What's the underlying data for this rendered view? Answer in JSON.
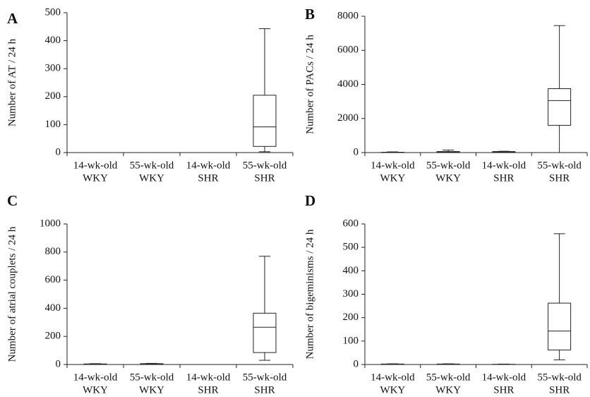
{
  "chart_data": [
    {
      "type": "box",
      "label": "A",
      "ylabel": "Number of AT / 24 h",
      "categories": [
        [
          "14-wk-old",
          "WKY"
        ],
        [
          "55-wk-old",
          "WKY"
        ],
        [
          "14-wk-old",
          "SHR"
        ],
        [
          "55-wk-old",
          "SHR"
        ]
      ],
      "boxes": [
        {
          "min": 0,
          "q1": 0,
          "median": 0,
          "q3": 0,
          "max": 0
        },
        {
          "min": 0,
          "q1": 0,
          "median": 0,
          "q3": 0,
          "max": 0
        },
        {
          "min": 0,
          "q1": 0,
          "median": 0,
          "q3": 0,
          "max": 0
        },
        {
          "min": 3,
          "q1": 22,
          "median": 92,
          "q3": 205,
          "max": 443
        }
      ],
      "ylim": [
        0,
        500
      ],
      "yticks": [
        0,
        100,
        200,
        300,
        400,
        500
      ]
    },
    {
      "type": "box",
      "label": "B",
      "ylabel": "Number of PACs / 24 h",
      "categories": [
        [
          "14-wk-old",
          "WKY"
        ],
        [
          "55-wk-old",
          "WKY"
        ],
        [
          "14-wk-old",
          "SHR"
        ],
        [
          "55-wk-old",
          "SHR"
        ]
      ],
      "boxes": [
        {
          "min": 0,
          "q1": 0,
          "median": 10,
          "q3": 20,
          "max": 40
        },
        {
          "min": 0,
          "q1": 10,
          "median": 30,
          "q3": 60,
          "max": 150
        },
        {
          "min": 0,
          "q1": 10,
          "median": 30,
          "q3": 60,
          "max": 80
        },
        {
          "min": 0,
          "q1": 1600,
          "median": 3050,
          "q3": 3750,
          "max": 7450
        }
      ],
      "ylim": [
        0,
        8000
      ],
      "yticks": [
        0,
        2000,
        4000,
        6000,
        8000
      ]
    },
    {
      "type": "box",
      "label": "C",
      "ylabel": "Number of atrial couplets / 24 h",
      "categories": [
        [
          "14-wk-old",
          "WKY"
        ],
        [
          "55-wk-old",
          "WKY"
        ],
        [
          "14-wk-old",
          "SHR"
        ],
        [
          "55-wk-old",
          "SHR"
        ]
      ],
      "boxes": [
        {
          "min": 0,
          "q1": 0,
          "median": 2,
          "q3": 4,
          "max": 6
        },
        {
          "min": 0,
          "q1": 2,
          "median": 4,
          "q3": 6,
          "max": 8
        },
        {
          "min": 0,
          "q1": 0,
          "median": 0,
          "q3": 0,
          "max": 0
        },
        {
          "min": 30,
          "q1": 85,
          "median": 265,
          "q3": 365,
          "max": 770
        }
      ],
      "ylim": [
        0,
        1000
      ],
      "yticks": [
        0,
        200,
        400,
        600,
        800,
        1000
      ]
    },
    {
      "type": "box",
      "label": "D",
      "ylabel": "Number of bigeminisms / 24 h",
      "categories": [
        [
          "14-wk-old",
          "WKY"
        ],
        [
          "55-wk-old",
          "WKY"
        ],
        [
          "14-wk-old",
          "SHR"
        ],
        [
          "55-wk-old",
          "SHR"
        ]
      ],
      "boxes": [
        {
          "min": 0,
          "q1": 0,
          "median": 1,
          "q3": 2,
          "max": 3
        },
        {
          "min": 0,
          "q1": 0,
          "median": 1,
          "q3": 2,
          "max": 3
        },
        {
          "min": 0,
          "q1": 0,
          "median": 0,
          "q3": 1,
          "max": 2
        },
        {
          "min": 20,
          "q1": 62,
          "median": 143,
          "q3": 262,
          "max": 558
        }
      ],
      "ylim": [
        0,
        600
      ],
      "yticks": [
        0,
        100,
        200,
        300,
        400,
        500,
        600
      ]
    }
  ]
}
